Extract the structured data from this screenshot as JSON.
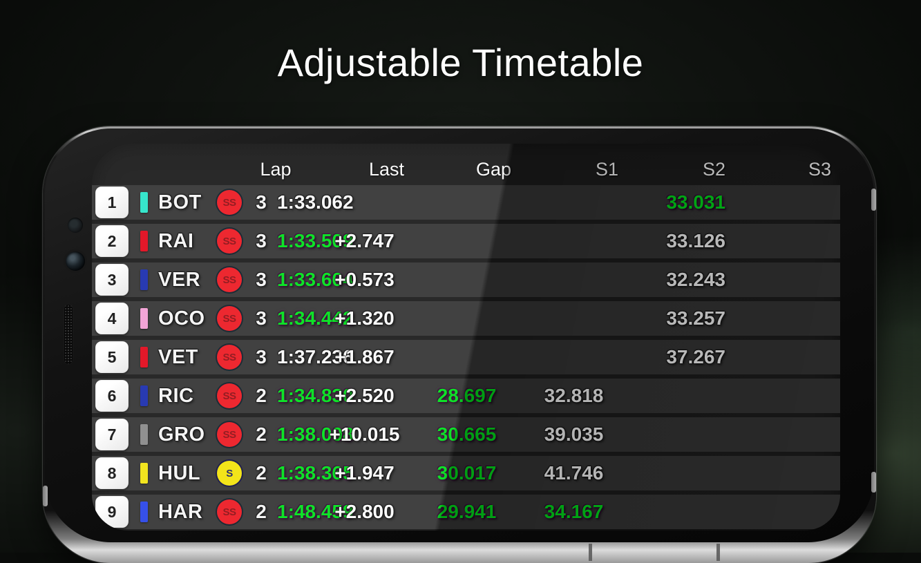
{
  "page": {
    "title": "Adjustable Timetable"
  },
  "colors": {
    "green": "#00e01b",
    "white": "#fbfbfb",
    "tire_ss_bg": "#ec1c24",
    "tire_ss_text": "#8d1016",
    "tire_s_bg": "#f2e20d",
    "tire_s_text": "#1e2366",
    "row_bg": "#363636"
  },
  "table": {
    "headers": [
      "Lap",
      "Last",
      "Gap",
      "S1",
      "S2",
      "S3"
    ],
    "rows": [
      {
        "pos": "1",
        "team_color": "#2be4c8",
        "driver": "BOT",
        "tire": "SS",
        "lap": "3",
        "last": {
          "v": "1:33.062",
          "c": "white"
        },
        "gap": {
          "v": "",
          "c": "white"
        },
        "s1": {
          "v": "",
          "c": "white"
        },
        "s2": {
          "v": "",
          "c": "white"
        },
        "s3": {
          "v": "33.031",
          "c": "green"
        }
      },
      {
        "pos": "2",
        "team_color": "#e10b1d",
        "driver": "RAI",
        "tire": "SS",
        "lap": "3",
        "last": {
          "v": "1:33.509",
          "c": "green"
        },
        "gap": {
          "v": "+2.747",
          "c": "white"
        },
        "s1": {
          "v": "",
          "c": "white"
        },
        "s2": {
          "v": "",
          "c": "white"
        },
        "s3": {
          "v": "33.126",
          "c": "white"
        }
      },
      {
        "pos": "3",
        "team_color": "#1b2fae",
        "driver": "VER",
        "tire": "SS",
        "lap": "3",
        "last": {
          "v": "1:33.604",
          "c": "green"
        },
        "gap": {
          "v": "+0.573",
          "c": "white"
        },
        "s1": {
          "v": "",
          "c": "white"
        },
        "s2": {
          "v": "",
          "c": "white"
        },
        "s3": {
          "v": "32.243",
          "c": "white"
        }
      },
      {
        "pos": "4",
        "team_color": "#f2a0d5",
        "driver": "OCO",
        "tire": "SS",
        "lap": "3",
        "last": {
          "v": "1:34.442",
          "c": "green"
        },
        "gap": {
          "v": "+1.320",
          "c": "white"
        },
        "s1": {
          "v": "",
          "c": "white"
        },
        "s2": {
          "v": "",
          "c": "white"
        },
        "s3": {
          "v": "33.257",
          "c": "white"
        }
      },
      {
        "pos": "5",
        "team_color": "#e10b1d",
        "driver": "VET",
        "tire": "SS",
        "lap": "3",
        "last": {
          "v": "1:37.236",
          "c": "white"
        },
        "gap": {
          "v": "+1.867",
          "c": "white"
        },
        "s1": {
          "v": "",
          "c": "white"
        },
        "s2": {
          "v": "",
          "c": "white"
        },
        "s3": {
          "v": "37.267",
          "c": "white"
        }
      },
      {
        "pos": "6",
        "team_color": "#1b2fae",
        "driver": "RIC",
        "tire": "SS",
        "lap": "2",
        "last": {
          "v": "1:34.830",
          "c": "green"
        },
        "gap": {
          "v": "+2.520",
          "c": "white"
        },
        "s1": {
          "v": "28.697",
          "c": "green"
        },
        "s2": {
          "v": "32.818",
          "c": "white"
        },
        "s3": {
          "v": "",
          "c": "white"
        }
      },
      {
        "pos": "7",
        "team_color": "#8a8a8a",
        "driver": "GRO",
        "tire": "SS",
        "lap": "2",
        "last": {
          "v": "1:38.008",
          "c": "green"
        },
        "gap": {
          "v": "+10.015",
          "c": "white"
        },
        "s1": {
          "v": "30.665",
          "c": "green"
        },
        "s2": {
          "v": "39.035",
          "c": "white"
        },
        "s3": {
          "v": "",
          "c": "white"
        }
      },
      {
        "pos": "8",
        "team_color": "#f0e312",
        "driver": "HUL",
        "tire": "S",
        "lap": "2",
        "last": {
          "v": "1:38.365",
          "c": "green"
        },
        "gap": {
          "v": "+1.947",
          "c": "white"
        },
        "s1": {
          "v": "30.017",
          "c": "green"
        },
        "s2": {
          "v": "41.746",
          "c": "white"
        },
        "s3": {
          "v": "",
          "c": "white"
        }
      },
      {
        "pos": "9",
        "team_color": "#2a46e8",
        "driver": "HAR",
        "tire": "SS",
        "lap": "2",
        "last": {
          "v": "1:48.459",
          "c": "green"
        },
        "gap": {
          "v": "+2.800",
          "c": "white"
        },
        "s1": {
          "v": "29.941",
          "c": "green"
        },
        "s2": {
          "v": "34.167",
          "c": "green"
        },
        "s3": {
          "v": "",
          "c": "white"
        }
      }
    ]
  }
}
